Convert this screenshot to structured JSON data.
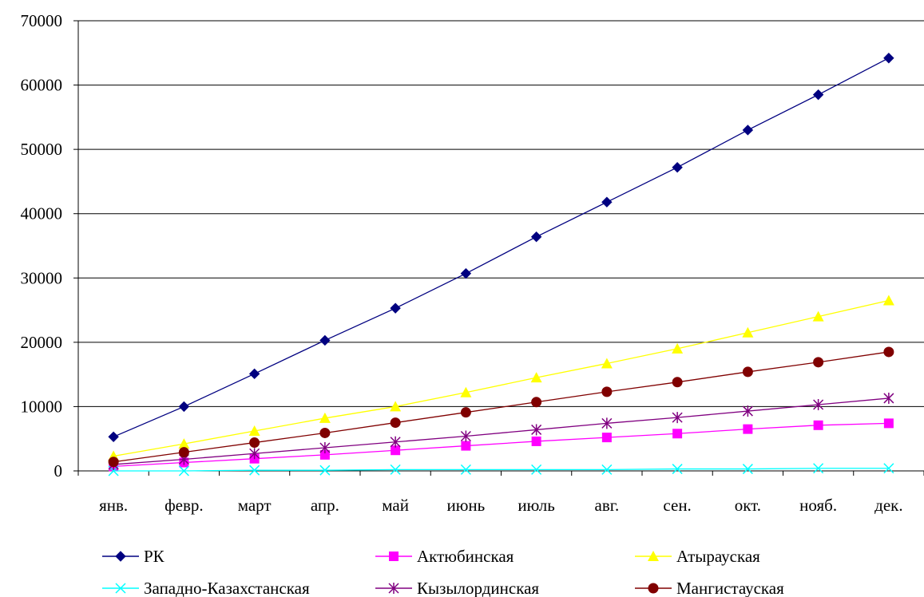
{
  "chart_data": {
    "type": "line",
    "title": "",
    "xlabel": "",
    "ylabel": "",
    "categories": [
      "янв.",
      "февр.",
      "март",
      "апр.",
      "май",
      "июнь",
      "июль",
      "авг.",
      "сен.",
      "окт.",
      "нояб.",
      "дек."
    ],
    "ylim": [
      0,
      70000
    ],
    "yticks": [
      0,
      10000,
      20000,
      30000,
      40000,
      50000,
      60000,
      70000
    ],
    "grid": "horizontal",
    "legend_position": "bottom",
    "series": [
      {
        "name": "РК",
        "color": "#000080",
        "marker": "diamond",
        "values": [
          5300,
          10000,
          15100,
          20300,
          25300,
          30700,
          36400,
          41800,
          47200,
          53000,
          58500,
          64200
        ]
      },
      {
        "name": "Актюбинская",
        "color": "#ff00ff",
        "marker": "square",
        "values": [
          700,
          1300,
          1900,
          2500,
          3200,
          3900,
          4600,
          5200,
          5800,
          6500,
          7100,
          7400
        ]
      },
      {
        "name": "Атырауская",
        "color": "#ffff00",
        "marker": "triangle",
        "values": [
          2300,
          4200,
          6200,
          8200,
          10000,
          12200,
          14500,
          16700,
          19000,
          21500,
          24000,
          26500
        ]
      },
      {
        "name": "Западно-Казахстанская",
        "color": "#00ffff",
        "marker": "x",
        "values": [
          0,
          0,
          100,
          100,
          200,
          200,
          200,
          200,
          300,
          300,
          400,
          400
        ]
      },
      {
        "name": "Кызылординская",
        "color": "#800080",
        "marker": "star",
        "values": [
          1000,
          1800,
          2700,
          3600,
          4500,
          5400,
          6400,
          7400,
          8300,
          9300,
          10300,
          11300
        ]
      },
      {
        "name": "Мангистауская",
        "color": "#800000",
        "marker": "circle",
        "values": [
          1400,
          2900,
          4400,
          5900,
          7500,
          9100,
          10700,
          12300,
          13800,
          15400,
          16900,
          18500
        ]
      }
    ]
  }
}
